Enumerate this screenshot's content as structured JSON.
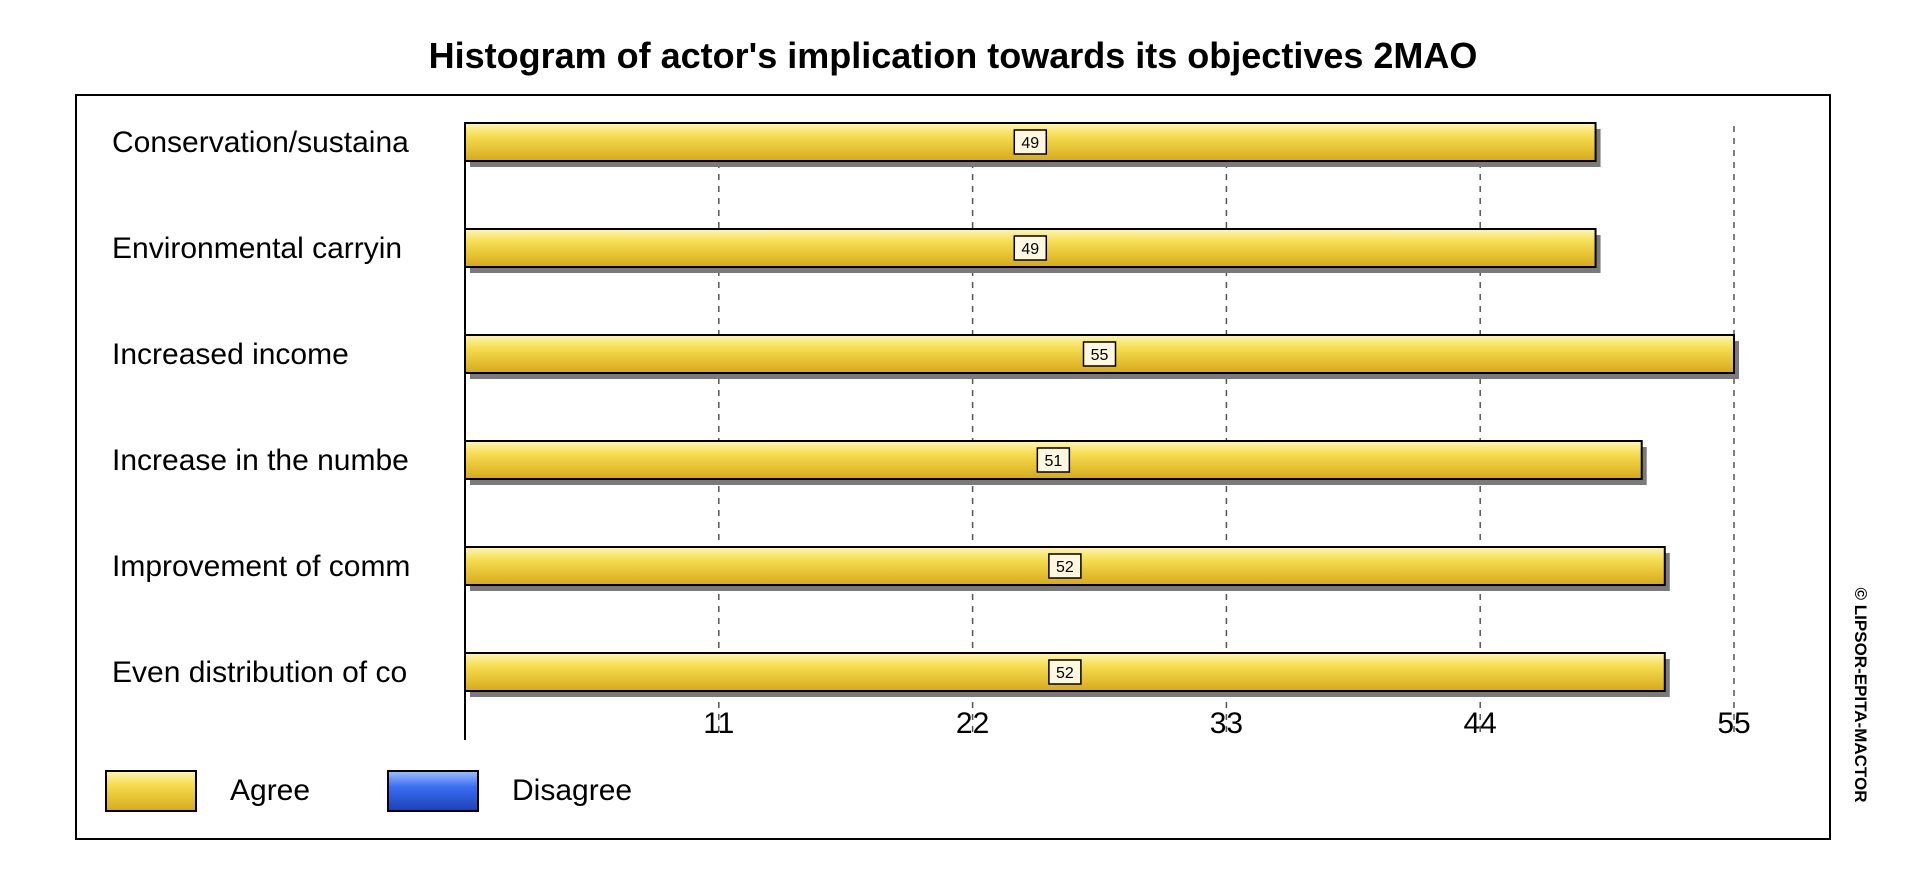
{
  "chart_data": {
    "type": "bar",
    "orientation": "horizontal",
    "title": "Histogram of actor's implication towards its objectives 2MAO",
    "categories": [
      "Conservation/sustaina",
      "Environmental carryin",
      "Increased income",
      "Increase in the numbe",
      "Improvement  of comm",
      "Even distribution of co"
    ],
    "series": [
      {
        "name": "Agree",
        "color": "#f2d23a",
        "values": [
          49,
          49,
          55,
          51,
          52,
          52
        ]
      },
      {
        "name": "Disagree",
        "color": "#2f5fe0",
        "values": [
          0,
          0,
          0,
          0,
          0,
          0
        ]
      }
    ],
    "data_labels": [
      "49",
      "49",
      "55",
      "51",
      "52",
      "52"
    ],
    "xlim": [
      0,
      55
    ],
    "x_ticks": [
      11,
      22,
      33,
      44,
      55
    ],
    "x_tick_labels": [
      "11",
      "22",
      "33",
      "44",
      "55"
    ],
    "grid": "vertical-dashed",
    "legend_position": "bottom-left",
    "credit": "© LIPSOR-EPITA-MACTOR"
  }
}
